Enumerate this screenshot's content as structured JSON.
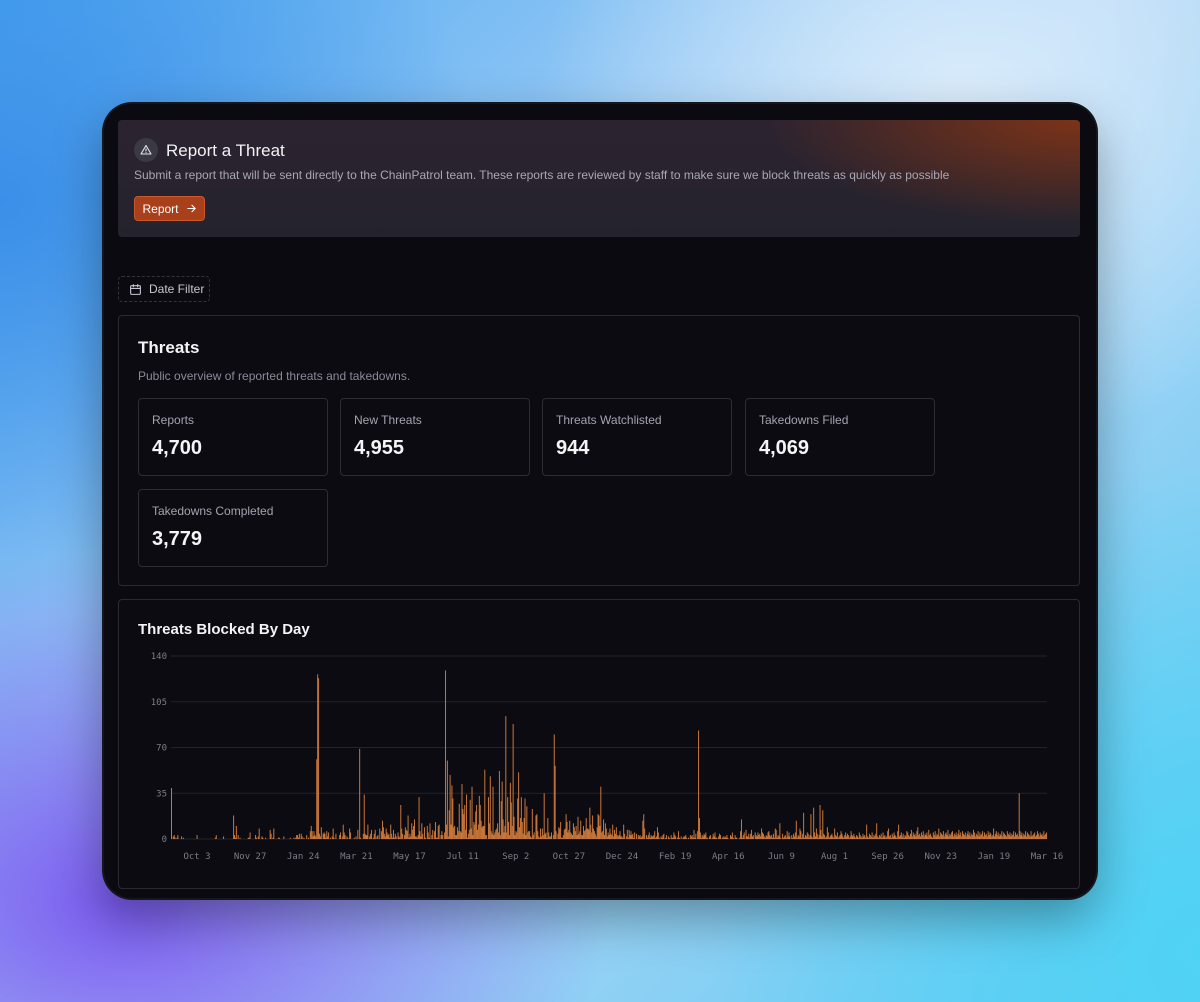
{
  "banner": {
    "title": "Report a Threat",
    "description": "Submit a report that will be sent directly to the ChainPatrol team. These reports are reviewed by staff to make sure we block threats as quickly as possible",
    "button_label": "Report",
    "icon": "warning-triangle-icon"
  },
  "filter": {
    "label": "Date Filter",
    "icon": "calendar-icon"
  },
  "threats": {
    "title": "Threats",
    "subtitle": "Public overview of reported threats and takedowns.",
    "stats": [
      {
        "label": "Reports",
        "value": "4,700"
      },
      {
        "label": "New Threats",
        "value": "4,955"
      },
      {
        "label": "Threats Watchlisted",
        "value": "944"
      },
      {
        "label": "Takedowns Filed",
        "value": "4,069"
      },
      {
        "label": "Takedowns Completed",
        "value": "3,779"
      }
    ]
  },
  "chart_panel": {
    "title": "Threats Blocked By Day"
  },
  "colors": {
    "accent": "#a8401c",
    "bar": "#c9773a",
    "background": "#0a0a10"
  },
  "chart_data": {
    "type": "bar",
    "title": "Threats Blocked By Day",
    "xlabel": "",
    "ylabel": "",
    "ylim": [
      0,
      140
    ],
    "yticks": [
      0,
      35,
      70,
      105,
      140
    ],
    "xticks": [
      "Oct 3",
      "Nov 27",
      "Jan 24",
      "Mar 21",
      "May 17",
      "Jul 11",
      "Sep 2",
      "Oct 27",
      "Dec 24",
      "Feb 19",
      "Apr 16",
      "Jun 9",
      "Aug 1",
      "Sep 26",
      "Nov 23",
      "Jan 19",
      "Mar 16"
    ],
    "grid": true,
    "series_note_days": 915,
    "values": [
      39,
      0,
      2,
      3,
      1,
      0,
      1,
      3,
      0,
      0,
      0,
      2,
      0,
      1,
      0,
      0,
      0,
      0,
      0,
      0,
      0,
      0,
      0,
      0,
      0,
      0,
      0,
      0,
      3,
      0,
      0,
      0,
      0,
      0,
      0,
      0,
      0,
      0,
      0,
      0,
      0,
      0,
      0,
      0,
      0,
      0,
      0,
      0,
      1,
      3,
      0,
      0,
      0,
      0,
      0,
      0,
      0,
      2,
      0,
      0,
      0,
      0,
      0,
      0,
      0,
      0,
      0,
      0,
      18,
      3,
      1,
      10,
      0,
      3,
      0,
      1,
      0,
      0,
      0,
      0,
      0,
      0,
      0,
      0,
      1,
      1,
      5,
      0,
      0,
      0,
      0,
      0,
      3,
      1,
      0,
      2,
      8,
      0,
      0,
      2,
      1,
      0,
      0,
      1,
      0,
      0,
      0,
      0,
      7,
      4,
      0,
      1,
      8,
      0,
      0,
      0,
      0,
      1,
      1,
      0,
      0,
      0,
      0,
      2,
      0,
      0,
      0,
      0,
      0,
      0,
      1,
      0,
      0,
      0,
      1,
      0,
      1,
      3,
      3,
      1,
      4,
      0,
      4,
      2,
      0,
      1,
      0,
      0,
      3,
      0,
      1,
      0,
      6,
      10,
      6,
      2,
      6,
      3,
      2,
      61,
      126,
      123,
      4,
      2,
      9,
      0,
      4,
      5,
      4,
      1,
      6,
      2,
      5,
      0,
      1,
      0,
      2,
      8,
      1,
      0,
      4,
      0,
      0,
      0,
      3,
      5,
      0,
      2,
      11,
      5,
      3,
      0,
      2,
      1,
      0,
      8,
      5,
      0,
      0,
      0,
      1,
      0,
      2,
      0,
      7,
      0,
      69,
      1,
      0,
      0,
      4,
      34,
      4,
      3,
      3,
      11,
      0,
      2,
      4,
      7,
      0,
      1,
      4,
      7,
      0,
      2,
      3,
      0,
      8,
      0,
      6,
      14,
      9,
      4,
      2,
      8,
      5,
      3,
      4,
      1,
      11,
      4,
      1,
      7,
      1,
      4,
      2,
      0,
      5,
      2,
      1,
      26,
      8,
      4,
      0,
      3,
      9,
      7,
      6,
      18,
      1,
      4,
      2,
      12,
      7,
      10,
      15,
      2,
      2,
      1,
      3,
      32,
      6,
      2,
      12,
      4,
      0,
      9,
      1,
      0,
      10,
      5,
      1,
      12,
      0,
      3,
      7,
      0,
      6,
      13,
      1,
      1,
      10,
      11,
      0,
      3,
      6,
      3,
      0,
      5,
      129,
      11,
      60,
      2,
      22,
      49,
      11,
      41,
      31,
      9,
      10,
      3,
      3,
      9,
      6,
      27,
      6,
      5,
      42,
      23,
      19,
      26,
      7,
      34,
      1,
      4,
      7,
      30,
      8,
      40,
      3,
      13,
      11,
      21,
      26,
      7,
      11,
      33,
      26,
      14,
      9,
      10,
      10,
      53,
      3,
      3,
      0,
      32,
      12,
      48,
      6,
      4,
      40,
      3,
      5,
      7,
      8,
      12,
      5,
      52,
      3,
      29,
      44,
      15,
      5,
      10,
      94,
      5,
      32,
      13,
      3,
      43,
      28,
      10,
      88,
      17,
      3,
      6,
      5,
      31,
      51,
      9,
      16,
      32,
      13,
      4,
      16,
      31,
      3,
      25,
      5,
      6,
      6,
      2,
      1,
      23,
      3,
      5,
      0,
      18,
      19,
      6,
      2,
      1,
      8,
      2,
      8,
      3,
      35,
      4,
      5,
      1,
      16,
      5,
      2,
      2,
      5,
      0,
      3,
      80,
      56,
      6,
      0,
      4,
      9,
      8,
      13,
      1,
      1,
      3,
      7,
      8,
      19,
      13,
      5,
      7,
      14,
      5,
      4,
      3,
      12,
      9,
      6,
      10,
      3,
      17,
      4,
      6,
      14,
      3,
      3,
      10,
      6,
      7,
      16,
      8,
      8,
      7,
      24,
      11,
      5,
      18,
      8,
      6,
      4,
      2,
      9,
      19,
      18,
      10,
      40,
      5,
      6,
      15,
      3,
      12,
      8,
      2,
      5,
      3,
      8,
      4,
      3,
      11,
      2,
      7,
      4,
      9,
      3,
      2,
      3,
      6,
      2,
      2,
      1,
      11,
      4,
      0,
      2,
      7,
      1,
      7,
      3,
      6,
      3,
      4,
      1,
      5,
      0,
      4,
      0,
      3,
      2,
      3,
      1,
      2,
      14,
      19,
      8,
      0,
      3,
      1,
      3,
      5,
      1,
      3,
      2,
      2,
      3,
      6,
      1,
      2,
      9,
      5,
      1,
      0,
      2,
      1,
      3,
      4,
      0,
      1,
      3,
      0,
      2,
      1,
      0,
      3,
      1,
      1,
      5,
      3,
      2,
      0,
      1,
      6,
      1,
      0,
      2,
      0,
      1,
      2,
      2,
      3,
      1,
      0,
      1,
      0,
      3,
      2,
      3,
      1,
      7,
      1,
      4,
      0,
      6,
      83,
      16,
      5,
      1,
      3,
      2,
      4,
      3,
      5,
      1,
      1,
      0,
      2,
      3,
      0,
      1,
      4,
      2,
      5,
      1,
      1,
      0,
      2,
      4,
      3,
      0,
      1,
      2,
      1,
      2,
      1,
      3,
      1,
      0,
      0,
      3,
      2,
      5,
      1,
      0,
      3,
      1,
      1,
      0,
      0,
      1,
      6,
      15,
      1,
      3,
      5,
      0,
      7,
      2,
      2,
      4,
      1,
      4,
      7,
      2,
      3,
      0,
      5,
      3,
      2,
      5,
      3,
      4,
      2,
      8,
      5,
      4,
      2,
      1,
      3,
      2,
      5,
      6,
      3,
      2,
      3,
      1,
      4,
      1,
      8,
      7,
      1,
      3,
      2,
      12,
      1,
      0,
      4,
      1,
      2,
      3,
      1,
      6,
      2,
      5,
      2,
      0,
      3,
      1,
      4,
      2,
      5,
      14,
      1,
      3,
      2,
      8,
      6,
      1,
      4,
      20,
      1,
      3,
      2,
      5,
      4,
      1,
      3,
      19,
      2,
      1,
      24,
      5,
      2,
      8,
      4,
      1,
      3,
      26,
      7,
      2,
      22,
      4,
      3,
      1,
      2,
      9,
      5,
      1,
      2,
      3,
      4,
      2,
      1,
      8,
      3,
      2,
      5,
      1,
      2,
      3,
      6,
      4,
      2,
      1,
      3,
      5,
      2,
      4,
      3,
      1,
      2,
      6,
      3,
      2,
      4,
      2,
      1,
      3,
      2,
      1,
      5,
      3,
      2,
      1,
      4,
      2,
      3,
      1,
      11,
      2,
      1,
      4,
      3,
      2,
      5,
      1,
      3,
      2,
      4,
      12,
      2,
      1,
      3,
      2,
      4,
      1,
      5,
      2,
      3,
      1,
      2,
      6,
      8,
      2,
      3,
      1,
      4,
      2,
      5,
      3,
      2,
      1,
      6,
      11,
      2,
      3,
      5,
      2,
      4,
      1,
      3,
      2,
      6,
      5,
      3,
      2,
      4,
      7,
      2,
      5,
      3,
      4,
      2,
      6,
      9,
      3,
      4,
      2,
      5,
      3,
      6,
      2,
      4,
      3,
      5,
      2,
      7,
      3,
      4,
      2,
      1,
      5,
      3,
      6,
      2,
      4,
      3,
      8,
      2,
      5,
      4,
      3,
      6,
      2,
      4,
      5,
      3,
      7,
      2,
      4,
      3,
      5,
      6,
      2,
      4,
      3,
      5,
      2,
      4,
      7,
      3,
      5,
      2,
      6,
      4,
      3,
      5,
      2,
      4,
      6,
      3,
      5,
      2,
      4,
      3,
      7,
      5,
      2,
      4,
      3,
      6,
      2,
      5,
      3,
      4,
      6,
      2,
      5,
      3,
      4,
      2,
      6,
      3,
      5,
      4,
      2,
      3,
      8,
      2,
      4,
      6,
      3,
      5,
      2,
      4,
      3,
      6,
      2,
      5,
      4,
      3,
      2,
      6,
      4,
      3,
      5,
      2,
      4,
      3,
      6,
      2,
      5,
      3,
      4,
      2,
      35,
      6,
      3,
      5,
      2,
      4,
      3,
      6,
      2,
      5,
      4,
      3,
      2,
      6,
      2,
      3,
      4,
      5,
      2,
      3,
      6,
      4,
      2,
      5,
      3,
      4,
      2,
      6,
      3,
      4,
      5
    ]
  }
}
